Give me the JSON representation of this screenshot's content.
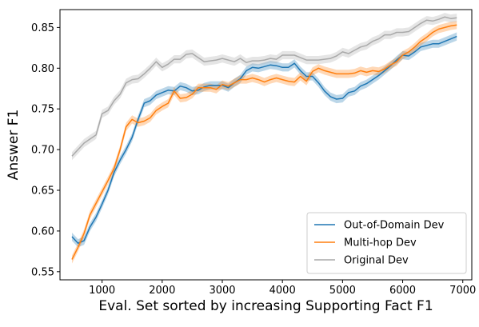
{
  "chart_data": {
    "type": "line",
    "title": "",
    "xlabel": "Eval. Set sorted by increasing Supporting Fact F1",
    "ylabel": "Answer F1",
    "xlim": [
      300,
      7150
    ],
    "ylim": [
      0.54,
      0.872
    ],
    "xticks": [
      1000,
      2000,
      3000,
      4000,
      5000,
      6000,
      7000
    ],
    "xtick_labels": [
      "1000",
      "2000",
      "3000",
      "4000",
      "5000",
      "6000",
      "7000"
    ],
    "yticks": [
      0.55,
      0.6,
      0.65,
      0.7,
      0.75,
      0.8,
      0.85
    ],
    "ytick_labels": [
      "0.55",
      "0.60",
      "0.65",
      "0.70",
      "0.75",
      "0.80",
      "0.85"
    ],
    "grid": false,
    "legend_position": "lower-right",
    "series": [
      {
        "name": "Out-of-Domain Dev",
        "color": "#1f77b4",
        "x": [
          500,
          600,
          700,
          800,
          900,
          1000,
          1100,
          1200,
          1300,
          1400,
          1500,
          1600,
          1700,
          1800,
          1900,
          2000,
          2100,
          2200,
          2300,
          2400,
          2500,
          2600,
          2700,
          2800,
          2900,
          3000,
          3100,
          3200,
          3300,
          3400,
          3500,
          3600,
          3700,
          3800,
          3900,
          4000,
          4100,
          4200,
          4300,
          4400,
          4500,
          4600,
          4700,
          4800,
          4900,
          5000,
          5100,
          5200,
          5300,
          5400,
          5500,
          5600,
          5700,
          5800,
          5900,
          6000,
          6100,
          6200,
          6300,
          6400,
          6500,
          6600,
          6700,
          6800,
          6900
        ],
        "values": [
          0.593,
          0.585,
          0.588,
          0.605,
          0.617,
          0.633,
          0.65,
          0.672,
          0.687,
          0.7,
          0.715,
          0.737,
          0.757,
          0.76,
          0.767,
          0.77,
          0.773,
          0.772,
          0.778,
          0.776,
          0.772,
          0.773,
          0.777,
          0.779,
          0.779,
          0.779,
          0.776,
          0.782,
          0.787,
          0.797,
          0.801,
          0.8,
          0.802,
          0.804,
          0.803,
          0.801,
          0.801,
          0.806,
          0.797,
          0.79,
          0.79,
          0.782,
          0.772,
          0.765,
          0.762,
          0.763,
          0.77,
          0.772,
          0.778,
          0.781,
          0.786,
          0.791,
          0.797,
          0.803,
          0.81,
          0.816,
          0.815,
          0.82,
          0.826,
          0.828,
          0.83,
          0.83,
          0.833,
          0.836,
          0.839
        ]
      },
      {
        "name": "Multi-hop Dev",
        "color": "#ff7f0e",
        "x": [
          500,
          600,
          700,
          800,
          900,
          1000,
          1100,
          1200,
          1300,
          1400,
          1500,
          1600,
          1700,
          1800,
          1900,
          2000,
          2100,
          2200,
          2300,
          2400,
          2500,
          2600,
          2700,
          2800,
          2900,
          3000,
          3100,
          3200,
          3300,
          3400,
          3500,
          3600,
          3700,
          3800,
          3900,
          4000,
          4100,
          4200,
          4300,
          4400,
          4500,
          4600,
          4700,
          4800,
          4900,
          5000,
          5100,
          5200,
          5300,
          5400,
          5500,
          5600,
          5700,
          5800,
          5900,
          6000,
          6100,
          6200,
          6300,
          6400,
          6500,
          6600,
          6700,
          6800,
          6900
        ],
        "values": [
          0.565,
          0.58,
          0.597,
          0.62,
          0.634,
          0.648,
          0.662,
          0.677,
          0.7,
          0.728,
          0.737,
          0.733,
          0.735,
          0.739,
          0.748,
          0.753,
          0.757,
          0.772,
          0.763,
          0.764,
          0.768,
          0.776,
          0.776,
          0.776,
          0.774,
          0.78,
          0.778,
          0.782,
          0.786,
          0.786,
          0.788,
          0.786,
          0.783,
          0.786,
          0.788,
          0.786,
          0.784,
          0.783,
          0.79,
          0.784,
          0.796,
          0.8,
          0.797,
          0.795,
          0.793,
          0.793,
          0.793,
          0.794,
          0.797,
          0.795,
          0.797,
          0.796,
          0.799,
          0.804,
          0.808,
          0.816,
          0.82,
          0.826,
          0.833,
          0.838,
          0.844,
          0.848,
          0.85,
          0.852,
          0.853
        ]
      },
      {
        "name": "Original Dev",
        "color": "#a9a9a9",
        "x": [
          500,
          600,
          700,
          800,
          900,
          1000,
          1100,
          1200,
          1300,
          1400,
          1500,
          1600,
          1700,
          1800,
          1900,
          2000,
          2100,
          2200,
          2300,
          2400,
          2500,
          2600,
          2700,
          2800,
          2900,
          3000,
          3100,
          3200,
          3300,
          3400,
          3500,
          3600,
          3700,
          3800,
          3900,
          4000,
          4100,
          4200,
          4300,
          4400,
          4500,
          4600,
          4700,
          4800,
          4900,
          5000,
          5100,
          5200,
          5300,
          5400,
          5500,
          5600,
          5700,
          5800,
          5900,
          6000,
          6100,
          6200,
          6300,
          6400,
          6500,
          6600,
          6700,
          6800,
          6900
        ],
        "values": [
          0.692,
          0.7,
          0.708,
          0.713,
          0.718,
          0.744,
          0.748,
          0.76,
          0.768,
          0.782,
          0.786,
          0.787,
          0.793,
          0.8,
          0.808,
          0.801,
          0.805,
          0.811,
          0.811,
          0.817,
          0.818,
          0.813,
          0.808,
          0.809,
          0.81,
          0.812,
          0.81,
          0.808,
          0.812,
          0.807,
          0.809,
          0.809,
          0.81,
          0.812,
          0.811,
          0.816,
          0.816,
          0.816,
          0.813,
          0.81,
          0.81,
          0.81,
          0.811,
          0.812,
          0.815,
          0.82,
          0.818,
          0.822,
          0.826,
          0.828,
          0.833,
          0.836,
          0.841,
          0.841,
          0.844,
          0.844,
          0.845,
          0.85,
          0.855,
          0.859,
          0.858,
          0.86,
          0.863,
          0.861,
          0.862
        ]
      }
    ]
  }
}
